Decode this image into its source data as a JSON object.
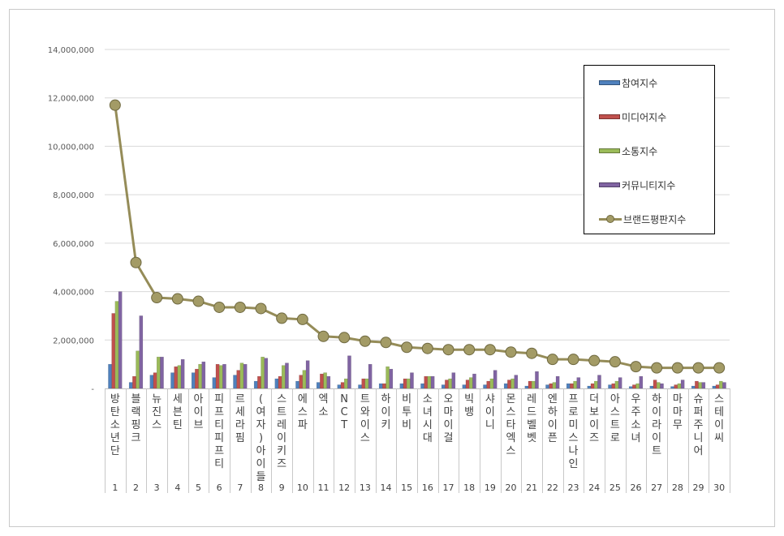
{
  "chart_data": {
    "type": "bar",
    "ylim": [
      0,
      14000000
    ],
    "yticks": [
      "-",
      "2,000,000",
      "4,000,000",
      "6,000,000",
      "8,000,000",
      "10,000,000",
      "12,000,000",
      "14,000,000"
    ],
    "grid": true,
    "legend_position": "top-right",
    "categories": [
      "방탄소년단",
      "블랙핑크",
      "뉴진스",
      "세븐틴",
      "아이브",
      "피프티피프티",
      "르세라핌",
      "(여자)아이들",
      "스트레이키즈",
      "에스파",
      "엑소",
      "NCT",
      "트와이스",
      "하이키",
      "비투비",
      "소녀시대",
      "오마이걸",
      "빅뱅",
      "샤이니",
      "몬스타엑스",
      "레드벨벳",
      "엔하이픈",
      "프로미스나인",
      "더보이즈",
      "아스트로",
      "우주소녀",
      "하이라이트",
      "마마무",
      "슈퍼주니어",
      "스테이씨"
    ],
    "ranks": [
      "1",
      "2",
      "3",
      "4",
      "5",
      "6",
      "7",
      "8",
      "9",
      "10",
      "11",
      "12",
      "13",
      "14",
      "15",
      "16",
      "17",
      "18",
      "19",
      "20",
      "21",
      "22",
      "23",
      "24",
      "25",
      "26",
      "27",
      "28",
      "29",
      "30"
    ],
    "series": [
      {
        "name": "참여지수",
        "kind": "bar",
        "color": "#4f81bd",
        "values": [
          1000000,
          250000,
          550000,
          650000,
          650000,
          450000,
          550000,
          300000,
          400000,
          300000,
          250000,
          150000,
          150000,
          200000,
          200000,
          200000,
          150000,
          150000,
          150000,
          200000,
          100000,
          150000,
          200000,
          100000,
          150000,
          80000,
          100000,
          80000,
          100000,
          100000
        ]
      },
      {
        "name": "미디어지수",
        "kind": "bar",
        "color": "#c0504d",
        "values": [
          3100000,
          500000,
          650000,
          900000,
          800000,
          1000000,
          750000,
          500000,
          500000,
          550000,
          600000,
          250000,
          400000,
          200000,
          400000,
          500000,
          350000,
          350000,
          300000,
          350000,
          300000,
          200000,
          200000,
          200000,
          200000,
          150000,
          350000,
          150000,
          300000,
          150000
        ]
      },
      {
        "name": "소통지수",
        "kind": "bar",
        "color": "#9bbb59",
        "values": [
          3600000,
          1550000,
          1300000,
          950000,
          1000000,
          950000,
          1050000,
          1300000,
          950000,
          750000,
          650000,
          400000,
          400000,
          900000,
          400000,
          500000,
          400000,
          450000,
          400000,
          400000,
          300000,
          250000,
          300000,
          300000,
          300000,
          200000,
          250000,
          200000,
          250000,
          300000
        ]
      },
      {
        "name": "커뮤니티지수",
        "kind": "bar",
        "color": "#8064a2",
        "values": [
          4000000,
          3000000,
          1300000,
          1200000,
          1100000,
          1000000,
          1000000,
          1250000,
          1050000,
          1150000,
          500000,
          1350000,
          1000000,
          800000,
          650000,
          500000,
          650000,
          600000,
          750000,
          550000,
          700000,
          500000,
          450000,
          550000,
          450000,
          500000,
          200000,
          350000,
          250000,
          250000
        ]
      },
      {
        "name": "브랜드평판지수",
        "kind": "line",
        "color": "#958c58",
        "values": [
          11700000,
          5200000,
          3750000,
          3700000,
          3600000,
          3350000,
          3350000,
          3300000,
          2900000,
          2850000,
          2150000,
          2100000,
          1950000,
          1900000,
          1700000,
          1650000,
          1600000,
          1600000,
          1600000,
          1500000,
          1450000,
          1200000,
          1200000,
          1150000,
          1100000,
          900000,
          850000,
          850000,
          850000,
          850000
        ]
      }
    ]
  }
}
